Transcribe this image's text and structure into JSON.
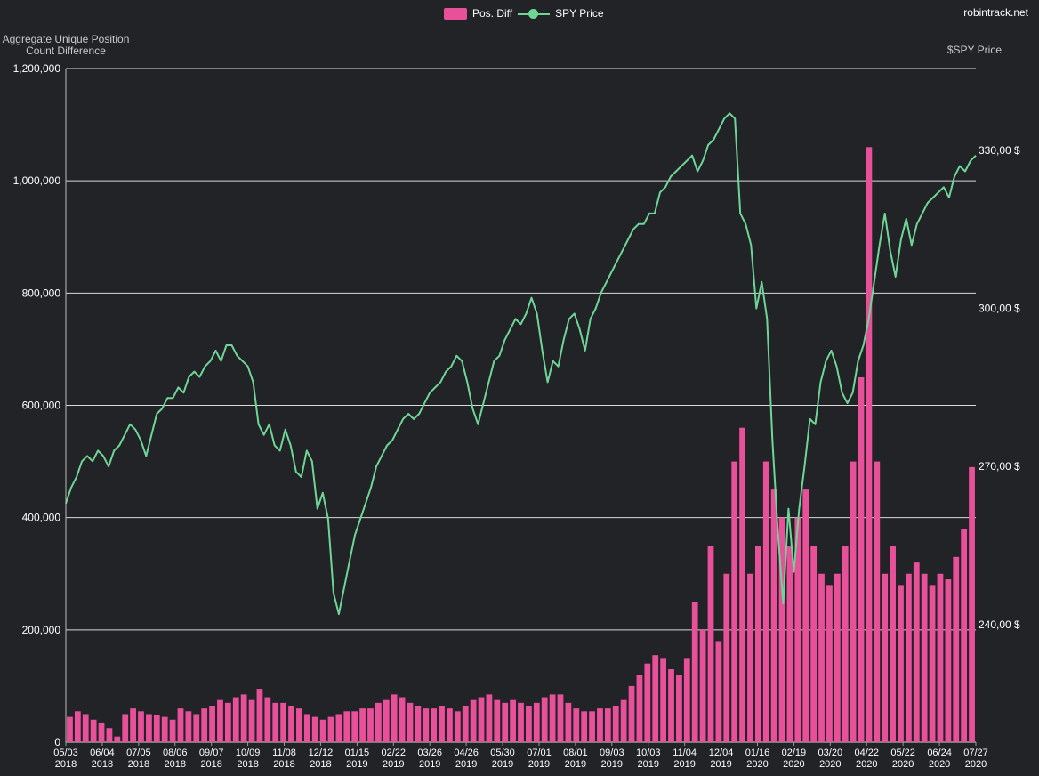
{
  "header": {
    "brand": "robintrack.net",
    "legend": [
      {
        "label": "Pos. Diff",
        "color": "#e8509a"
      },
      {
        "label": "SPY Price",
        "color": "#6fd597"
      }
    ]
  },
  "chart_data": {
    "type": "bar",
    "title": "",
    "left_axis": {
      "label": "Aggregate Unique Position Count Difference",
      "min": 0,
      "max": 1200000,
      "ticks": [
        "0",
        "200,000",
        "400,000",
        "600,000",
        "800,000",
        "1,000,000",
        "1,200,000"
      ]
    },
    "right_axis": {
      "label": "$SPY Price",
      "min": 217.7,
      "max": 345.5,
      "ticks": [
        {
          "value": 240,
          "label": "240,00 $"
        },
        {
          "value": 270,
          "label": "270,00 $"
        },
        {
          "value": 300,
          "label": "300,00 $"
        },
        {
          "value": 330,
          "label": "330,00 $"
        }
      ]
    },
    "x_ticks": [
      {
        "date": "05/03",
        "year": "2018"
      },
      {
        "date": "06/04",
        "year": "2018"
      },
      {
        "date": "07/05",
        "year": "2018"
      },
      {
        "date": "08/06",
        "year": "2018"
      },
      {
        "date": "09/07",
        "year": "2018"
      },
      {
        "date": "10/09",
        "year": "2018"
      },
      {
        "date": "11/08",
        "year": "2018"
      },
      {
        "date": "12/12",
        "year": "2018"
      },
      {
        "date": "01/15",
        "year": "2019"
      },
      {
        "date": "02/22",
        "year": "2019"
      },
      {
        "date": "03/26",
        "year": "2019"
      },
      {
        "date": "04/26",
        "year": "2019"
      },
      {
        "date": "05/30",
        "year": "2019"
      },
      {
        "date": "07/01",
        "year": "2019"
      },
      {
        "date": "08/01",
        "year": "2019"
      },
      {
        "date": "09/03",
        "year": "2019"
      },
      {
        "date": "10/03",
        "year": "2019"
      },
      {
        "date": "11/04",
        "year": "2019"
      },
      {
        "date": "12/04",
        "year": "2019"
      },
      {
        "date": "01/16",
        "year": "2020"
      },
      {
        "date": "02/19",
        "year": "2020"
      },
      {
        "date": "03/20",
        "year": "2020"
      },
      {
        "date": "04/22",
        "year": "2020"
      },
      {
        "date": "05/22",
        "year": "2020"
      },
      {
        "date": "06/24",
        "year": "2020"
      },
      {
        "date": "07/27",
        "year": "2020"
      }
    ],
    "grid": "horizontal",
    "legend_position": "top-center",
    "bar_series": {
      "name": "Pos. Diff",
      "values": [
        45000,
        55000,
        50000,
        40000,
        35000,
        25000,
        10000,
        50000,
        60000,
        55000,
        50000,
        48000,
        45000,
        40000,
        60000,
        55000,
        50000,
        60000,
        65000,
        75000,
        70000,
        80000,
        85000,
        75000,
        95000,
        80000,
        70000,
        70000,
        65000,
        60000,
        50000,
        45000,
        40000,
        45000,
        50000,
        55000,
        55000,
        60000,
        60000,
        70000,
        75000,
        85000,
        80000,
        70000,
        65000,
        60000,
        60000,
        65000,
        60000,
        55000,
        65000,
        75000,
        80000,
        85000,
        75000,
        70000,
        75000,
        70000,
        65000,
        70000,
        80000,
        85000,
        85000,
        70000,
        60000,
        55000,
        55000,
        60000,
        60000,
        65000,
        75000,
        100000,
        120000,
        140000,
        155000,
        150000,
        130000,
        120000,
        150000,
        250000,
        200000,
        350000,
        180000,
        300000,
        500000,
        560000,
        300000,
        350000,
        500000,
        450000,
        400000,
        350000,
        400000,
        450000,
        350000,
        300000,
        280000,
        300000,
        350000,
        500000,
        650000,
        1060000,
        500000,
        300000,
        350000,
        280000,
        300000,
        320000,
        300000,
        280000,
        300000,
        290000,
        330000,
        380000,
        490000
      ]
    },
    "line_series": {
      "name": "SPY Price",
      "values": [
        263,
        266,
        268,
        271,
        272,
        271,
        273,
        272,
        270,
        273,
        274,
        276,
        278,
        277,
        275,
        272,
        276,
        280,
        281,
        283,
        283,
        285,
        284,
        287,
        288,
        287,
        289,
        290,
        292,
        290,
        293,
        293,
        291,
        290,
        289,
        286,
        278,
        276,
        278,
        274,
        273,
        277,
        274,
        269,
        268,
        273,
        271,
        262,
        265,
        260,
        246,
        242,
        247,
        252,
        257,
        260,
        263,
        266,
        270,
        272,
        274,
        275,
        277,
        279,
        280,
        279,
        280,
        282,
        284,
        285,
        286,
        288,
        289,
        291,
        290,
        286,
        281,
        278,
        282,
        286,
        290,
        291,
        294,
        296,
        298,
        297,
        299,
        302,
        299,
        292,
        286,
        290,
        289,
        294,
        298,
        299,
        296,
        292,
        298,
        300,
        303,
        305,
        307,
        309,
        311,
        313,
        315,
        316,
        316,
        318,
        318,
        322,
        323,
        325,
        326,
        327,
        328,
        329,
        326,
        328,
        331,
        332,
        334,
        336,
        337,
        336,
        318,
        316,
        312,
        300,
        305,
        298,
        275,
        258,
        244,
        262,
        250,
        262,
        270,
        279,
        278,
        286,
        290,
        292,
        289,
        284,
        282,
        284,
        290,
        293,
        298,
        305,
        312,
        318,
        311,
        306,
        313,
        317,
        312,
        316,
        318,
        320,
        321,
        322,
        323,
        321,
        325,
        327,
        326,
        328,
        329
      ]
    }
  }
}
